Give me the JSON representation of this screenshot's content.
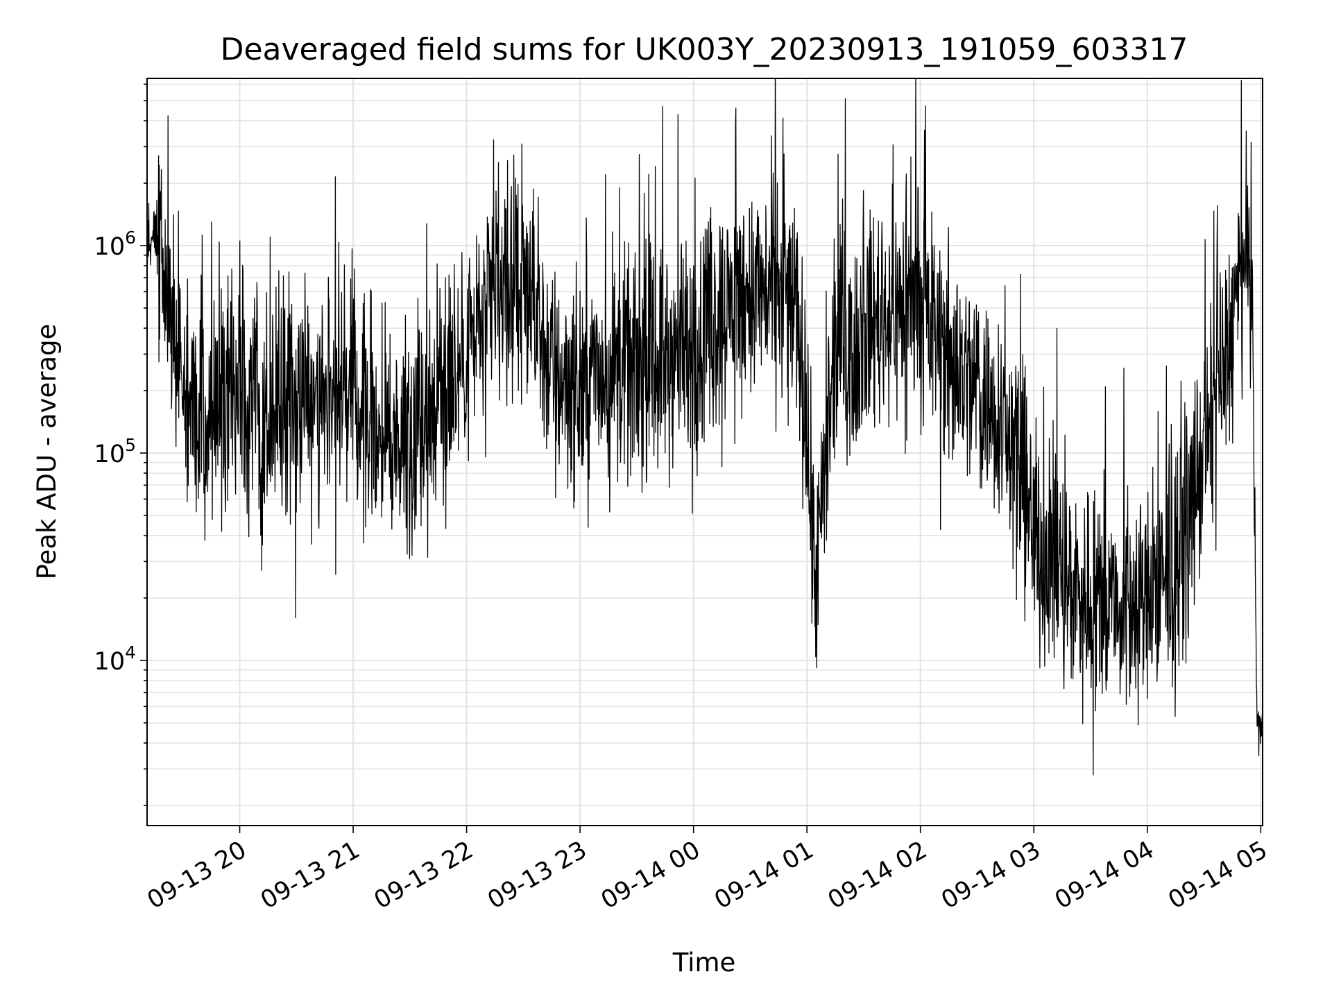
{
  "chart_data": {
    "type": "line",
    "title": "Deaveraged field sums for UK003Y_20230913_191059_603317",
    "xlabel": "Time",
    "ylabel": "Peak ADU - average",
    "yscale": "log",
    "ylim": [
      1600,
      6400000
    ],
    "xlim": [
      "2023-09-13 19:11",
      "2023-09-14 05:01"
    ],
    "grid": true,
    "x_tick_labels": [
      "09-13 20",
      "09-13 21",
      "09-13 22",
      "09-13 23",
      "09-14 00",
      "09-14 01",
      "09-14 02",
      "09-14 03",
      "09-14 04",
      "09-14 05"
    ],
    "y_tick_labels": [
      {
        "base": "10",
        "exp": "4"
      },
      {
        "base": "10",
        "exp": "5"
      },
      {
        "base": "10",
        "exp": "6"
      }
    ],
    "line_color": "#000000",
    "series": [
      {
        "x": [
          "2023-09-13 19:11",
          "2023-09-13 19:15",
          "2023-09-13 19:20",
          "2023-09-13 19:25",
          "2023-09-13 19:30",
          "2023-09-13 19:35",
          "2023-09-13 19:40",
          "2023-09-13 19:45",
          "2023-09-13 19:50",
          "2023-09-13 20:00",
          "2023-09-13 20:15",
          "2023-09-13 20:30",
          "2023-09-13 20:45",
          "2023-09-13 21:00",
          "2023-09-13 21:15",
          "2023-09-13 21:30",
          "2023-09-13 21:45",
          "2023-09-13 22:00",
          "2023-09-13 22:15",
          "2023-09-13 22:30",
          "2023-09-13 22:45",
          "2023-09-13 23:00",
          "2023-09-13 23:15",
          "2023-09-13 23:30",
          "2023-09-13 23:45",
          "2023-09-14 00:00",
          "2023-09-14 00:15",
          "2023-09-14 00:30",
          "2023-09-14 00:45",
          "2023-09-14 00:55",
          "2023-09-14 01:05",
          "2023-09-14 01:10",
          "2023-09-14 01:15",
          "2023-09-14 01:30",
          "2023-09-14 01:45",
          "2023-09-14 02:00",
          "2023-09-14 02:15",
          "2023-09-14 02:30",
          "2023-09-14 02:45",
          "2023-09-14 03:00",
          "2023-09-14 03:15",
          "2023-09-14 03:30",
          "2023-09-14 03:45",
          "2023-09-14 04:00",
          "2023-09-14 04:15",
          "2023-09-14 04:30",
          "2023-09-14 04:45",
          "2023-09-14 04:50",
          "2023-09-14 04:55",
          "2023-09-14 04:58",
          "2023-09-14 05:01"
        ],
        "y": [
          900000,
          1100000,
          600000,
          400000,
          200000,
          150000,
          130000,
          150000,
          160000,
          180000,
          160000,
          180000,
          200000,
          200000,
          120000,
          130000,
          200000,
          300000,
          600000,
          700000,
          250000,
          200000,
          250000,
          250000,
          300000,
          300000,
          500000,
          600000,
          650000,
          500000,
          25000,
          80000,
          300000,
          400000,
          500000,
          500000,
          300000,
          200000,
          150000,
          40000,
          25000,
          20000,
          18000,
          20000,
          25000,
          100000,
          400000,
          700000,
          1100000,
          5000,
          4500
        ]
      }
    ]
  }
}
